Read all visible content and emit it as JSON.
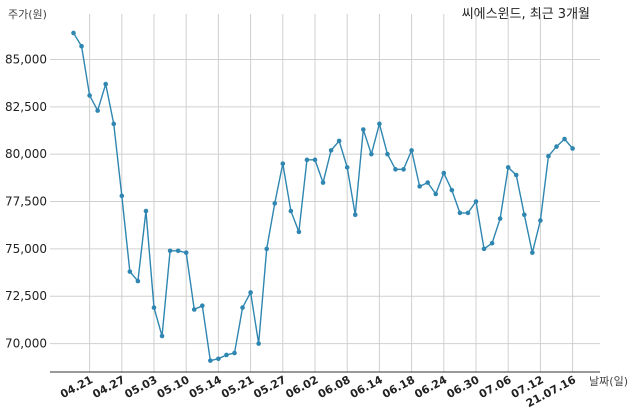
{
  "chart_data": {
    "type": "line",
    "title": "씨에스윈드, 최근 3개월",
    "ylabel": "주가(원)",
    "xlabel": "날짜(일)",
    "ylim": [
      68500,
      87400
    ],
    "grid": true,
    "yticks": [
      70000,
      72500,
      75000,
      77500,
      80000,
      82500,
      85000
    ],
    "ytick_labels": [
      "70,000",
      "72,500",
      "75,000",
      "77,500",
      "80,000",
      "82,500",
      "85,000"
    ],
    "xtick_labels": [
      "04.21",
      "04.27",
      "05.03",
      "05.10",
      "05.14",
      "05.21",
      "05.27",
      "06.02",
      "06.08",
      "06.14",
      "06.18",
      "06.24",
      "06.30",
      "07.06",
      "07.12",
      "21.07.16"
    ],
    "xtick_index": [
      2,
      6,
      10,
      14,
      18,
      22,
      26,
      30,
      34,
      38,
      42,
      46,
      50,
      54,
      58,
      62
    ],
    "series": [
      {
        "color": "#2e86b1",
        "values": [
          86400,
          85700,
          83100,
          82300,
          83700,
          81600,
          77800,
          73800,
          73300,
          77000,
          71900,
          70400,
          74900,
          74900,
          74800,
          71800,
          72000,
          69100,
          69200,
          69400,
          69500,
          71900,
          72700,
          70000,
          75000,
          77400,
          79500,
          77000,
          75900,
          79700,
          79700,
          78500,
          80200,
          80700,
          79300,
          76800,
          81300,
          80000,
          81600,
          80000,
          79200,
          79200,
          80200,
          78300,
          78500,
          77900,
          79000,
          78100,
          76900,
          76900,
          77500,
          75000,
          75300,
          76600,
          79300,
          78900,
          76800,
          74800,
          76500,
          79900,
          80400,
          80800,
          80300
        ]
      }
    ]
  }
}
